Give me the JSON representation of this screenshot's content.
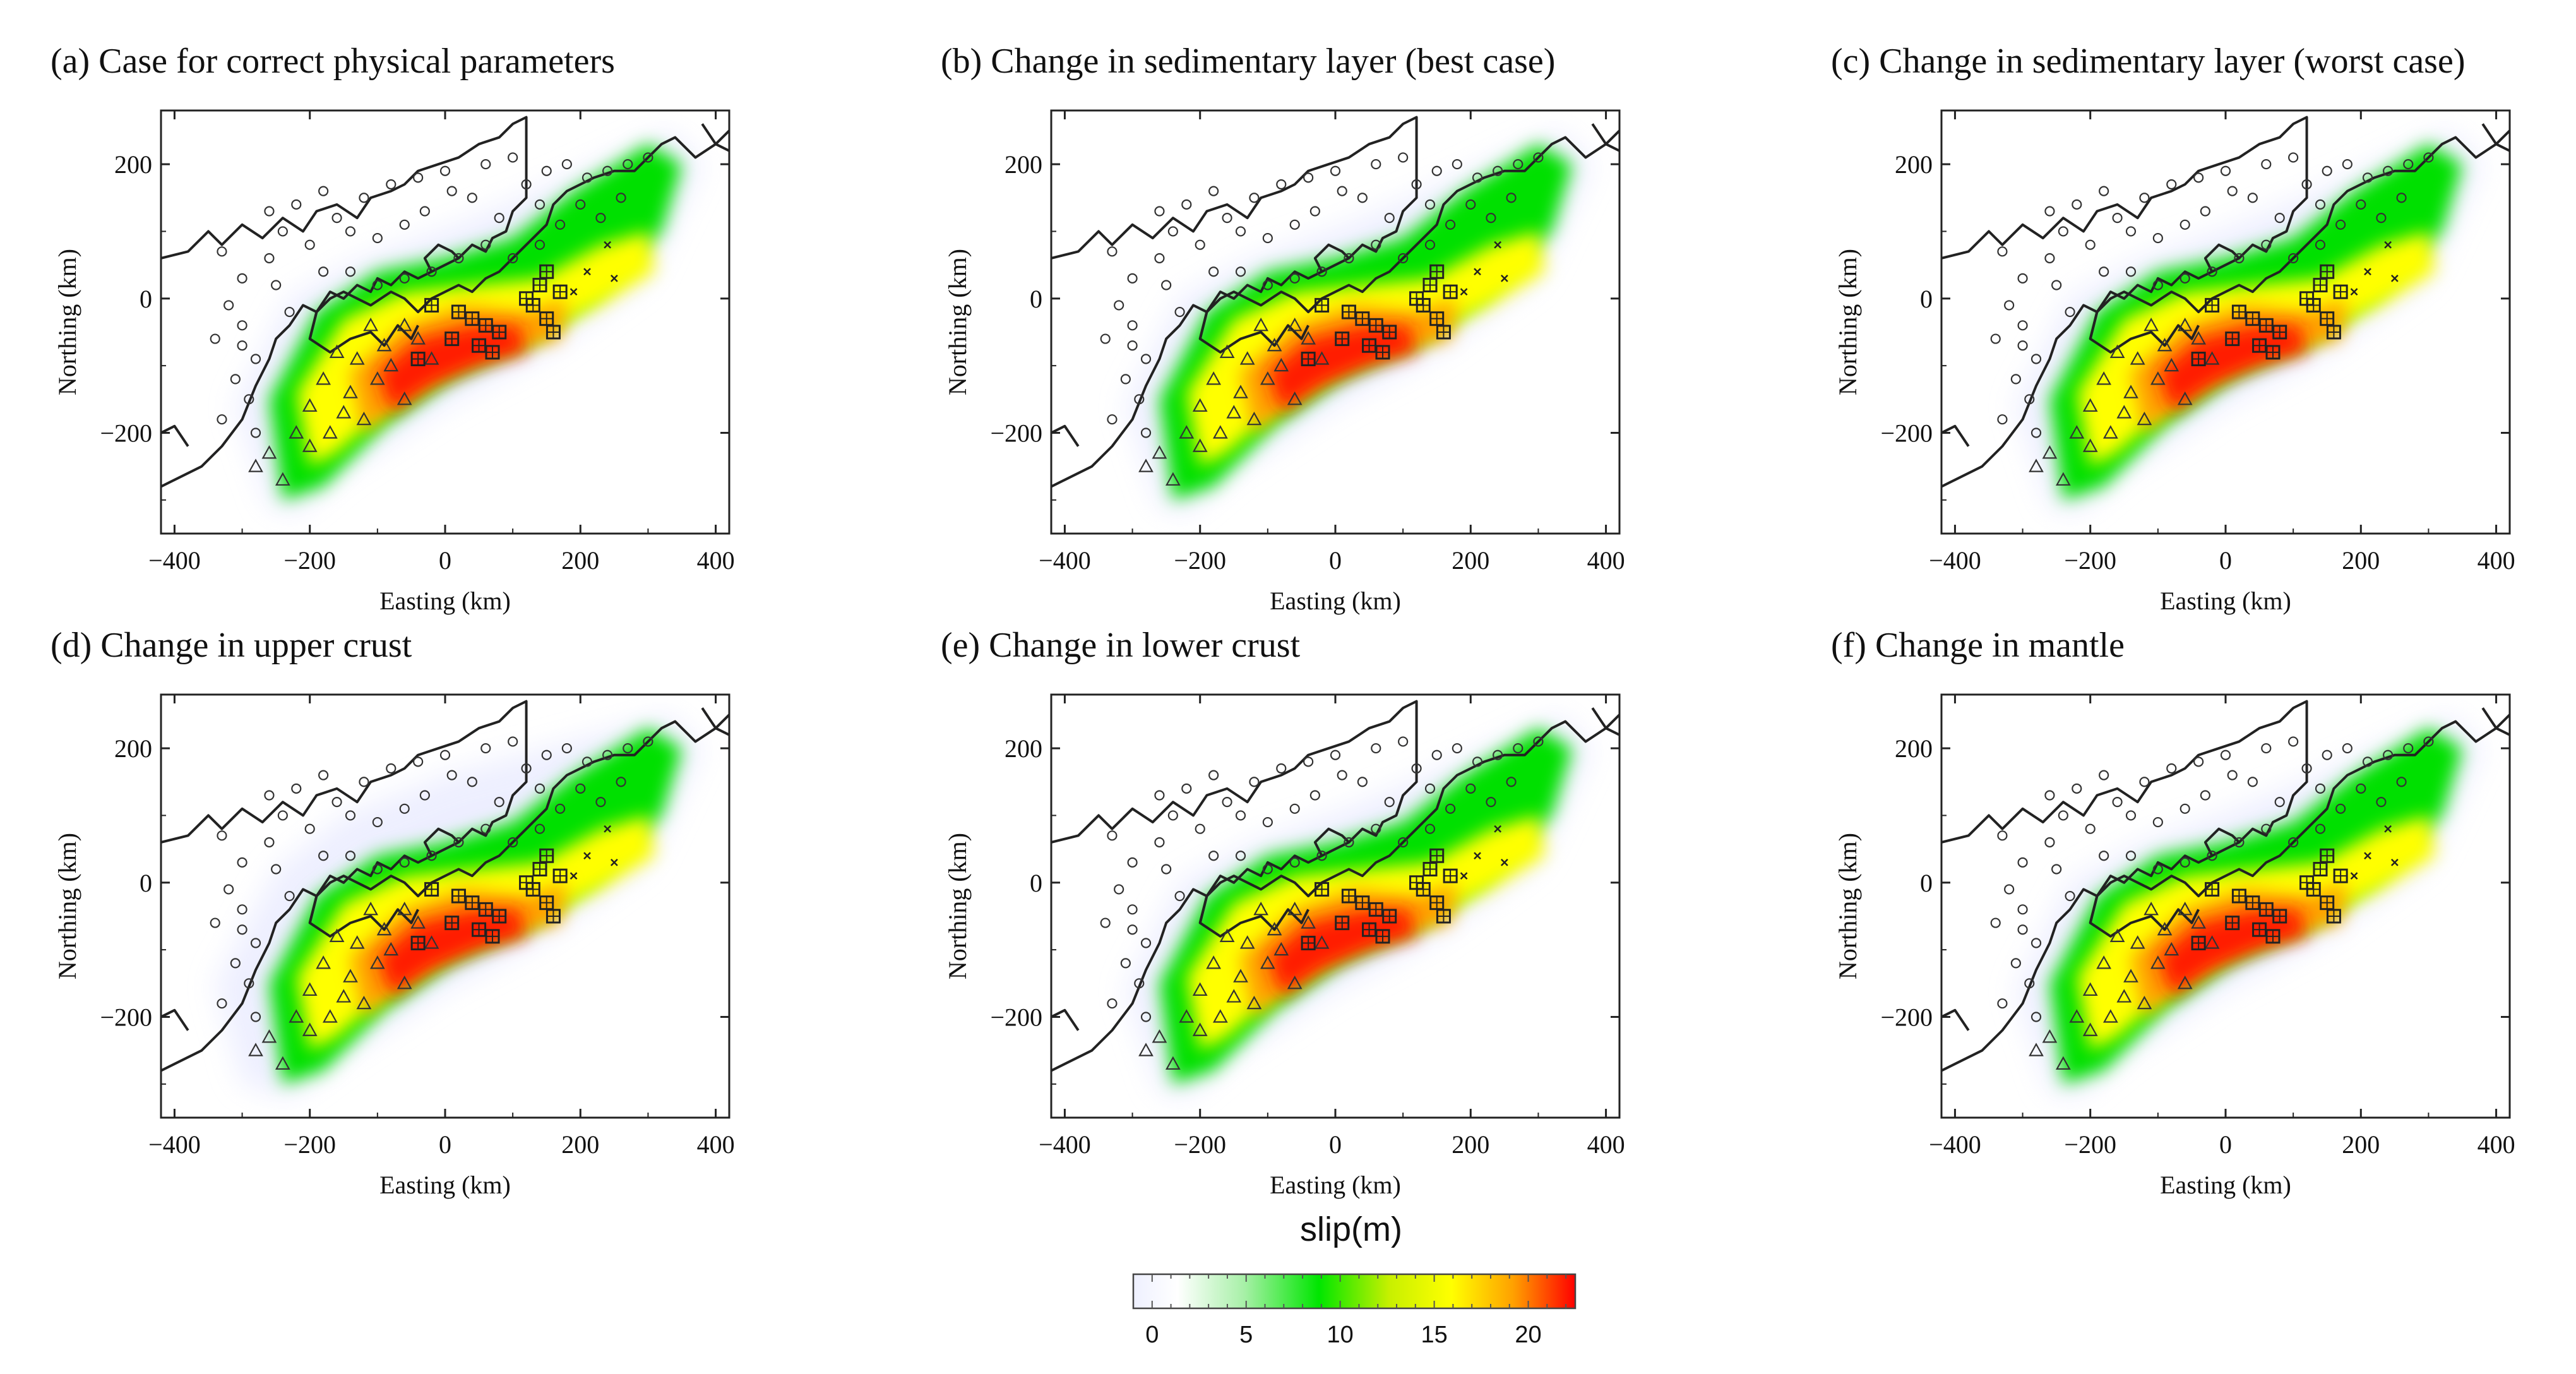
{
  "colors": {
    "slip_low": "#f4f4ff",
    "slip_mid1": "#00e600",
    "slip_mid2": "#ffff00",
    "slip_high": "#ff0000",
    "coast": "#222222",
    "frame": "#222222"
  },
  "chart_data": [
    {
      "type": "heatmap",
      "panel_id": "a",
      "title": "(a) Case for correct physical parameters",
      "xlabel": "Easting (km)",
      "ylabel": "Northing (km)",
      "xlim": [
        -420,
        420
      ],
      "ylim": [
        -350,
        280
      ],
      "xticks": [
        "−400",
        "−200",
        "0",
        "200",
        "400"
      ],
      "yticks": [
        "200",
        "0",
        "−200"
      ],
      "xtick_values": [
        -400,
        -200,
        0,
        200,
        400
      ],
      "ytick_values": [
        200,
        0,
        -200
      ],
      "slip_variant": "base"
    },
    {
      "type": "heatmap",
      "panel_id": "b",
      "title": "(b) Change in sedimentary layer (best case)",
      "xlabel": "Easting (km)",
      "ylabel": "Northing (km)",
      "xlim": [
        -420,
        420
      ],
      "ylim": [
        -350,
        280
      ],
      "xticks": [
        "−400",
        "−200",
        "0",
        "200",
        "400"
      ],
      "yticks": [
        "200",
        "0",
        "−200"
      ],
      "xtick_values": [
        -400,
        -200,
        0,
        200,
        400
      ],
      "ytick_values": [
        200,
        0,
        -200
      ],
      "slip_variant": "base"
    },
    {
      "type": "heatmap",
      "panel_id": "c",
      "title": "(c) Change in sedimentary layer (worst case)",
      "xlabel": "Easting (km)",
      "ylabel": "Northing (km)",
      "xlim": [
        -420,
        420
      ],
      "ylim": [
        -350,
        280
      ],
      "xticks": [
        "−400",
        "−200",
        "0",
        "200",
        "400"
      ],
      "yticks": [
        "200",
        "0",
        "−200"
      ],
      "xtick_values": [
        -400,
        -200,
        0,
        200,
        400
      ],
      "ytick_values": [
        200,
        0,
        -200
      ],
      "slip_variant": "base"
    },
    {
      "type": "heatmap",
      "panel_id": "d",
      "title": "(d) Change in upper crust",
      "xlabel": "Easting (km)",
      "ylabel": "Northing (km)",
      "xlim": [
        -420,
        420
      ],
      "ylim": [
        -350,
        280
      ],
      "xticks": [
        "−400",
        "−200",
        "0",
        "200",
        "400"
      ],
      "yticks": [
        "200",
        "0",
        "−200"
      ],
      "xtick_values": [
        -400,
        -200,
        0,
        200,
        400
      ],
      "ytick_values": [
        200,
        0,
        -200
      ],
      "slip_variant": "wide"
    },
    {
      "type": "heatmap",
      "panel_id": "e",
      "title": "(e) Change in lower crust",
      "xlabel": "Easting (km)",
      "ylabel": "Northing (km)",
      "xlim": [
        -420,
        420
      ],
      "ylim": [
        -350,
        280
      ],
      "xticks": [
        "−400",
        "−200",
        "0",
        "200",
        "400"
      ],
      "yticks": [
        "200",
        "0",
        "−200"
      ],
      "xtick_values": [
        -400,
        -200,
        0,
        200,
        400
      ],
      "ytick_values": [
        200,
        0,
        -200
      ],
      "slip_variant": "base"
    },
    {
      "type": "heatmap",
      "panel_id": "f",
      "title": "(f) Change in mantle",
      "xlabel": "Easting (km)",
      "ylabel": "Northing (km)",
      "xlim": [
        -420,
        420
      ],
      "ylim": [
        -350,
        280
      ],
      "xticks": [
        "−400",
        "−200",
        "0",
        "200",
        "400"
      ],
      "yticks": [
        "200",
        "0",
        "−200"
      ],
      "xtick_values": [
        -400,
        -200,
        0,
        200,
        400
      ],
      "ytick_values": [
        200,
        0,
        -200
      ],
      "slip_variant": "base"
    }
  ],
  "colorbar": {
    "title": "slip(m)",
    "min": -1,
    "max": 22.5,
    "ticks": [
      "0",
      "5",
      "10",
      "15",
      "20"
    ],
    "tick_values": [
      0,
      5,
      10,
      15,
      20
    ]
  },
  "markers": {
    "stations_land": [
      [
        -330,
        70
      ],
      [
        -300,
        30
      ],
      [
        -320,
        -10
      ],
      [
        -300,
        -40
      ],
      [
        -280,
        -90
      ],
      [
        -310,
        -120
      ],
      [
        -290,
        -150
      ],
      [
        -330,
        -180
      ],
      [
        -260,
        60
      ],
      [
        -250,
        20
      ],
      [
        -230,
        -20
      ],
      [
        -200,
        80
      ],
      [
        -160,
        120
      ],
      [
        -140,
        100
      ],
      [
        -100,
        90
      ],
      [
        -60,
        110
      ],
      [
        -30,
        130
      ],
      [
        10,
        160
      ],
      [
        40,
        150
      ],
      [
        80,
        120
      ],
      [
        120,
        170
      ],
      [
        150,
        190
      ],
      [
        180,
        200
      ],
      [
        210,
        180
      ],
      [
        240,
        190
      ],
      [
        270,
        200
      ],
      [
        300,
        210
      ],
      [
        -220,
        140
      ],
      [
        -180,
        160
      ],
      [
        -120,
        150
      ],
      [
        -80,
        170
      ],
      [
        -40,
        180
      ],
      [
        0,
        190
      ],
      [
        60,
        200
      ],
      [
        100,
        210
      ],
      [
        140,
        140
      ],
      [
        170,
        110
      ],
      [
        200,
        140
      ],
      [
        230,
        120
      ],
      [
        260,
        150
      ],
      [
        -260,
        130
      ],
      [
        -240,
        100
      ],
      [
        -140,
        40
      ],
      [
        -100,
        20
      ],
      [
        -60,
        30
      ],
      [
        -20,
        40
      ],
      [
        20,
        60
      ],
      [
        60,
        80
      ],
      [
        100,
        60
      ],
      [
        140,
        80
      ],
      [
        -180,
        40
      ],
      [
        -300,
        -70
      ],
      [
        -340,
        -60
      ],
      [
        -280,
        -200
      ]
    ],
    "stations_ocean_tri": [
      [
        -260,
        -230
      ],
      [
        -240,
        -270
      ],
      [
        -280,
        -250
      ],
      [
        -220,
        -200
      ],
      [
        -200,
        -160
      ],
      [
        -180,
        -120
      ],
      [
        -160,
        -80
      ],
      [
        -140,
        -140
      ],
      [
        -120,
        -180
      ],
      [
        -100,
        -120
      ],
      [
        -80,
        -100
      ],
      [
        -60,
        -150
      ],
      [
        -40,
        -60
      ],
      [
        -20,
        -90
      ],
      [
        -90,
        -70
      ],
      [
        -130,
        -90
      ],
      [
        -150,
        -170
      ],
      [
        -110,
        -40
      ],
      [
        -60,
        -40
      ],
      [
        -200,
        -220
      ],
      [
        -170,
        -200
      ]
    ],
    "stations_seafloor": [
      [
        20,
        -20
      ],
      [
        40,
        -30
      ],
      [
        60,
        -40
      ],
      [
        80,
        -50
      ],
      [
        50,
        -70
      ],
      [
        70,
        -80
      ],
      [
        10,
        -60
      ],
      [
        -20,
        -10
      ],
      [
        -40,
        -90
      ],
      [
        130,
        -10
      ],
      [
        140,
        20
      ],
      [
        150,
        -30
      ],
      [
        160,
        -50
      ],
      [
        170,
        10
      ],
      [
        120,
        0
      ],
      [
        150,
        40
      ]
    ],
    "cross_points": [
      [
        210,
        40
      ],
      [
        240,
        80
      ],
      [
        250,
        30
      ],
      [
        190,
        10
      ]
    ]
  },
  "ui": {
    "notes": ""
  }
}
